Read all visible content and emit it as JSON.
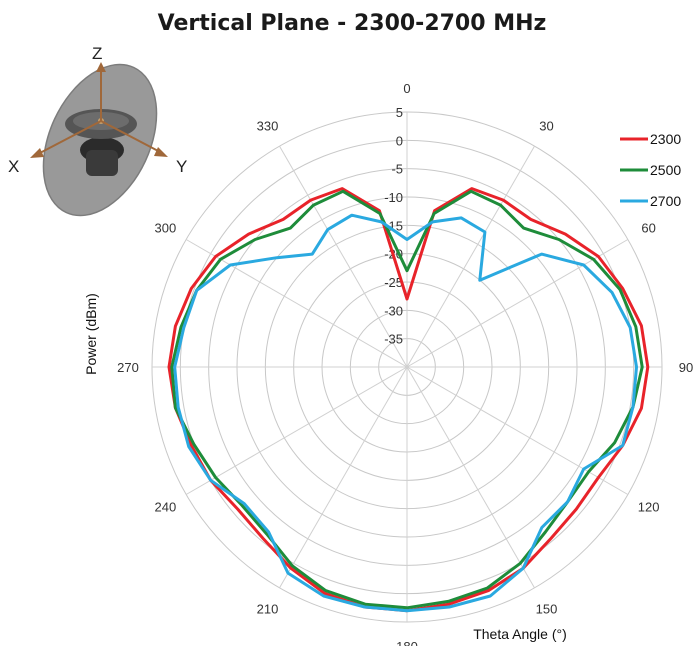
{
  "chart_data": {
    "type": "line",
    "subtype": "polar",
    "title": "Vertical Plane - 2300-2700 MHz",
    "ylabel": "Power (dBm)",
    "xlabel": "Theta  Angle (°)",
    "radial_range": [
      -40,
      5
    ],
    "radial_ticks": [
      5,
      0,
      -5,
      -10,
      -15,
      -20,
      -25,
      -30,
      -35
    ],
    "angle_ticks": [
      0,
      30,
      60,
      90,
      120,
      150,
      180,
      210,
      240,
      270,
      300,
      330
    ],
    "grid": true,
    "legend_position": "top-right",
    "angles": [
      0,
      10,
      20,
      30,
      40,
      50,
      60,
      70,
      80,
      90,
      100,
      110,
      120,
      130,
      140,
      150,
      160,
      170,
      180,
      190,
      200,
      210,
      220,
      230,
      240,
      250,
      260,
      270,
      280,
      290,
      300,
      310,
      320,
      330,
      340,
      350
    ],
    "series": [
      {
        "name": "2300",
        "color": "#e8232a",
        "values": [
          -28,
          -12,
          -6.5,
          -6,
          -6,
          -3.5,
          -1,
          0.5,
          2,
          2.5,
          2,
          0.5,
          -1,
          -1,
          -0.5,
          1,
          2,
          2.5,
          3,
          3,
          2.5,
          1,
          -0.5,
          -1,
          0,
          0.5,
          1.5,
          2,
          1.5,
          0.5,
          -1,
          -3.5,
          -6,
          -6,
          -6.5,
          -12
        ]
      },
      {
        "name": "2500",
        "color": "#1e8c3a",
        "values": [
          -23,
          -12.5,
          -7,
          -7,
          -8,
          -5,
          -2,
          0,
          1,
          1.5,
          0.5,
          -1,
          -3,
          -3,
          -2,
          0,
          1.5,
          2,
          2.5,
          2.5,
          2,
          0.5,
          -1.5,
          -2,
          -1,
          0,
          1.5,
          1.5,
          0.5,
          -0.5,
          -2,
          -5,
          -8,
          -7,
          -7,
          -12.5
        ]
      },
      {
        "name": "2700",
        "color": "#2aa9e0",
        "values": [
          -17.5,
          -14,
          -12,
          -12.5,
          -20,
          -9,
          -4,
          -1.5,
          0,
          0.5,
          0.5,
          0.5,
          -4,
          -3,
          -3,
          1,
          3,
          3,
          3,
          3,
          3,
          2,
          -2,
          -2.5,
          0,
          1,
          1,
          1,
          0,
          -0.5,
          -4,
          -10,
          -14,
          -12,
          -11.5,
          -14
        ]
      }
    ],
    "icon_labels": {
      "x": "X",
      "y": "Y",
      "z": "Z"
    }
  }
}
